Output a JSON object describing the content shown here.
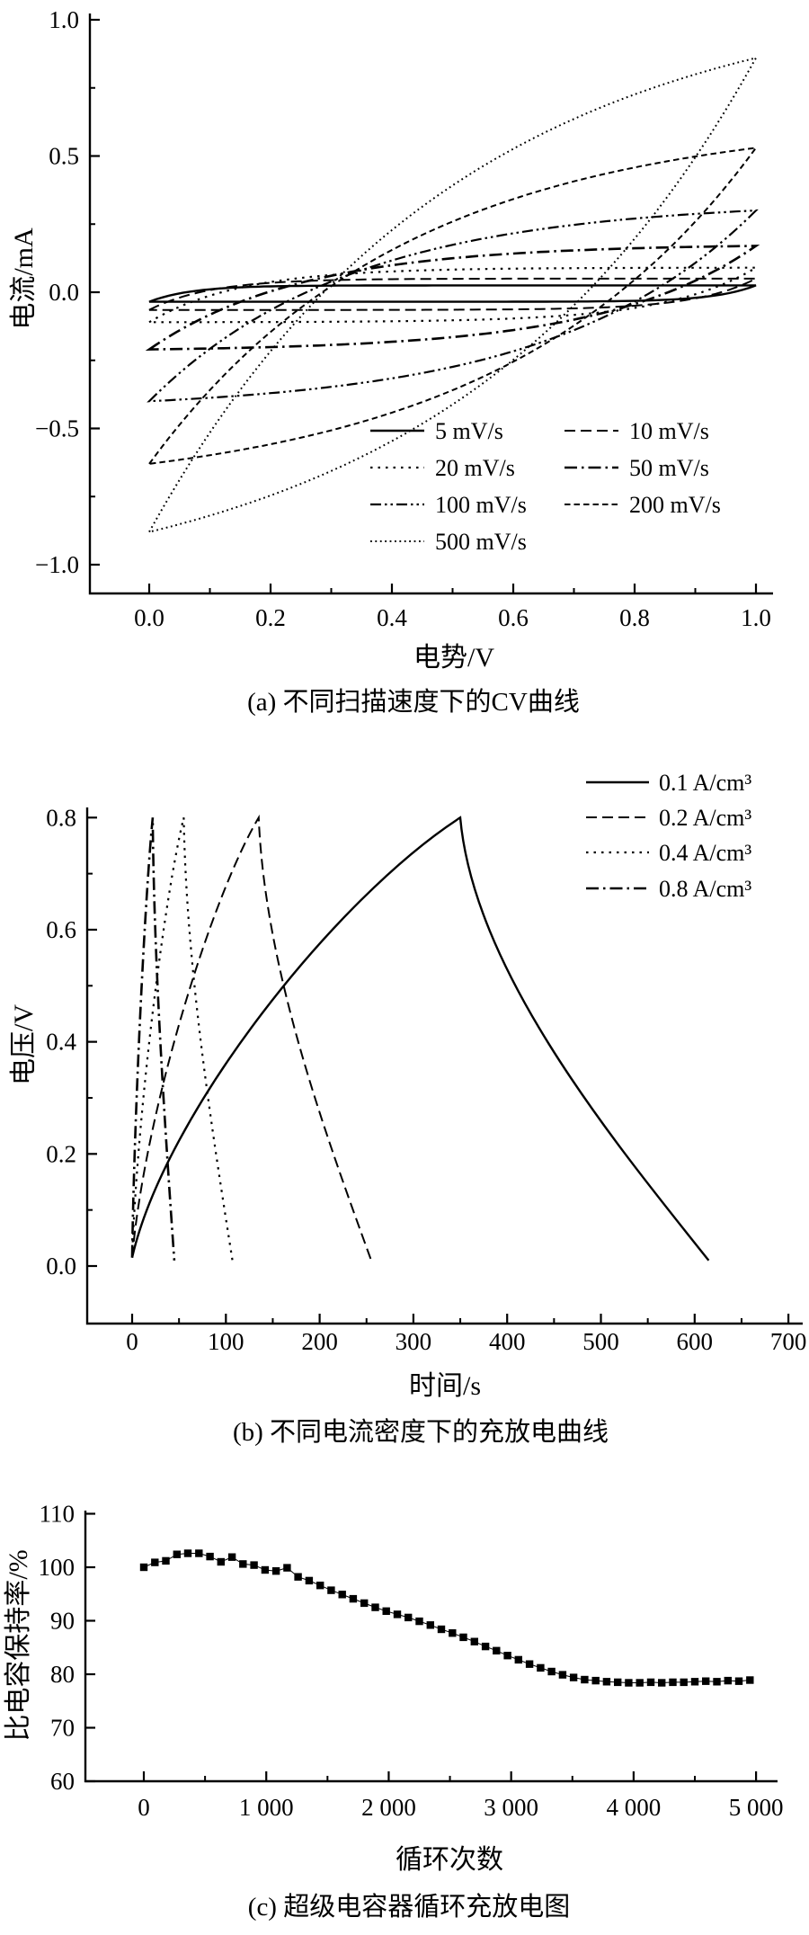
{
  "figure": {
    "background": "#ffffff",
    "ink": "#000000",
    "panel_captions": [
      "(a) 不同扫描速度下的CV曲线",
      "(b) 不同电流密度下的充放电曲线",
      "(c) 超级电容器循环充放电图"
    ]
  },
  "chart_data": [
    {
      "id": "a",
      "type": "line",
      "subtype": "cyclic_voltammetry_loops",
      "caption": "(a) 不同扫描速度下的CV曲线",
      "xlabel": "电势/V",
      "ylabel": "电流/mA",
      "xlim": [
        0.0,
        1.0
      ],
      "ylim": [
        -1.0,
        1.0
      ],
      "xtick_values": [
        0,
        0.2,
        0.4,
        0.6,
        0.8,
        1.0
      ],
      "xtick_labels": [
        "0.0",
        "0.2",
        "0.4",
        "0.6",
        "0.8",
        "1.0"
      ],
      "ytick_values": [
        1.0,
        0.5,
        0.0,
        -0.5,
        -1.0
      ],
      "ytick_labels": [
        "1.0",
        "0.5",
        "0.0",
        "−0.5",
        "−1.0"
      ],
      "grid": false,
      "legend_position": "inside bottom-right, two columns",
      "series": [
        {
          "name": "5 mV/s",
          "line_style": "solid",
          "anodic_peak_mA": 0.025,
          "cathodic_peak_mA": -0.035,
          "shape_tau": 0.07
        },
        {
          "name": "10 mV/s",
          "line_style": "dash",
          "anodic_peak_mA": 0.05,
          "cathodic_peak_mA": -0.065,
          "shape_tau": 0.1
        },
        {
          "name": "20 mV/s",
          "line_style": "dot",
          "anodic_peak_mA": 0.09,
          "cathodic_peak_mA": -0.11,
          "shape_tau": 0.15
        },
        {
          "name": "50 mV/s",
          "line_style": "dashdot",
          "anodic_peak_mA": 0.17,
          "cathodic_peak_mA": -0.21,
          "shape_tau": 0.25
        },
        {
          "name": "100 mV/s",
          "line_style": "dashdotdot",
          "anodic_peak_mA": 0.3,
          "cathodic_peak_mA": -0.4,
          "shape_tau": 0.33
        },
        {
          "name": "200 mV/s",
          "line_style": "shortdash",
          "anodic_peak_mA": 0.53,
          "cathodic_peak_mA": -0.63,
          "shape_tau": 0.42
        },
        {
          "name": "500 mV/s",
          "line_style": "finedot",
          "anodic_peak_mA": 0.86,
          "cathodic_peak_mA": -0.88,
          "shape_tau": 0.5
        }
      ]
    },
    {
      "id": "b",
      "type": "line",
      "subtype": "galvanostatic_charge_discharge",
      "caption": "(b) 不同电流密度下的充放电曲线",
      "xlabel": "时间/s",
      "ylabel": "电压/V",
      "xlim": [
        0,
        700
      ],
      "ylim": [
        0.0,
        0.8
      ],
      "xtick_values": [
        0,
        100,
        200,
        300,
        400,
        500,
        600,
        700
      ],
      "xtick_labels": [
        "0",
        "100",
        "200",
        "300",
        "400",
        "500",
        "600",
        "700"
      ],
      "ytick_values": [
        0.8,
        0.6,
        0.4,
        0.2,
        0.0
      ],
      "ytick_labels": [
        "0.8",
        "0.6",
        "0.4",
        "0.2",
        "0.0"
      ],
      "grid": false,
      "legend_position": "top-right",
      "series": [
        {
          "name": "0.1 A/cm³",
          "line_style": "solid",
          "t_start_s": 0,
          "t_peak_s": 350,
          "t_end_s": 615,
          "v_peak_V": 0.8
        },
        {
          "name": "0.2 A/cm³",
          "line_style": "dash",
          "t_start_s": 0,
          "t_peak_s": 135,
          "t_end_s": 255,
          "v_peak_V": 0.8
        },
        {
          "name": "0.4 A/cm³",
          "line_style": "dot",
          "t_start_s": 0,
          "t_peak_s": 55,
          "t_end_s": 107,
          "v_peak_V": 0.8
        },
        {
          "name": "0.8 A/cm³",
          "line_style": "dashdot",
          "t_start_s": 0,
          "t_peak_s": 22,
          "t_end_s": 45,
          "v_peak_V": 0.8
        }
      ]
    },
    {
      "id": "c",
      "type": "scatter",
      "marker": "filled-square",
      "caption": "(c) 超级电容器循环充放电图",
      "xlabel": "循环次数",
      "ylabel": "比电容保持率/%",
      "xlim": [
        0,
        5000
      ],
      "ylim": [
        60,
        110
      ],
      "xtick_values": [
        0,
        1000,
        2000,
        3000,
        4000,
        5000
      ],
      "xtick_labels": [
        "0",
        "1 000",
        "2 000",
        "3 000",
        "4 000",
        "5 000"
      ],
      "ytick_values": [
        110,
        100,
        90,
        80,
        70,
        60
      ],
      "ytick_labels": [
        "110",
        "100",
        "90",
        "80",
        "70",
        "60"
      ],
      "grid": false,
      "x": [
        0,
        90,
        180,
        270,
        360,
        450,
        540,
        630,
        720,
        810,
        900,
        990,
        1080,
        1170,
        1260,
        1350,
        1440,
        1530,
        1620,
        1710,
        1800,
        1890,
        1980,
        2070,
        2160,
        2250,
        2340,
        2430,
        2520,
        2610,
        2700,
        2790,
        2880,
        2970,
        3060,
        3150,
        3240,
        3330,
        3420,
        3510,
        3600,
        3690,
        3780,
        3870,
        3960,
        4050,
        4140,
        4230,
        4320,
        4410,
        4500,
        4590,
        4680,
        4770,
        4860,
        4950
      ],
      "y": [
        100.0,
        100.9,
        101.2,
        102.4,
        102.6,
        102.6,
        102.0,
        101.0,
        101.9,
        100.6,
        100.4,
        99.5,
        99.3,
        99.9,
        98.2,
        97.5,
        96.6,
        95.7,
        94.9,
        94.1,
        93.3,
        92.5,
        91.8,
        91.2,
        90.6,
        89.9,
        89.2,
        88.4,
        87.7,
        86.9,
        86.1,
        85.2,
        84.4,
        83.5,
        82.7,
        81.9,
        81.2,
        80.5,
        79.9,
        79.4,
        79.0,
        78.8,
        78.6,
        78.5,
        78.4,
        78.4,
        78.5,
        78.4,
        78.5,
        78.5,
        78.6,
        78.7,
        78.6,
        78.8,
        78.7,
        78.9
      ]
    }
  ]
}
